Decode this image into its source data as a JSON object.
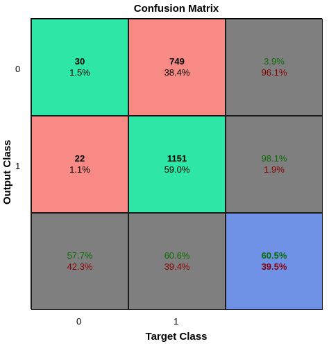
{
  "chart_data": {
    "type": "heatmap",
    "title": "Confusion Matrix",
    "xlabel": "Target Class",
    "ylabel": "Output Class",
    "x_ticks": [
      "0",
      "1"
    ],
    "y_ticks": [
      "0",
      "1"
    ],
    "cells": [
      [
        {
          "count": "30",
          "percent": "1.5%",
          "kind": "correct"
        },
        {
          "count": "749",
          "percent": "38.4%",
          "kind": "wrong"
        },
        {
          "good": "3.9%",
          "bad": "96.1%",
          "kind": "summary"
        }
      ],
      [
        {
          "count": "22",
          "percent": "1.1%",
          "kind": "wrong"
        },
        {
          "count": "1151",
          "percent": "59.0%",
          "kind": "correct"
        },
        {
          "good": "98.1%",
          "bad": "1.9%",
          "kind": "summary"
        }
      ],
      [
        {
          "good": "57.7%",
          "bad": "42.3%",
          "kind": "summary"
        },
        {
          "good": "60.6%",
          "bad": "39.4%",
          "kind": "summary"
        },
        {
          "good": "60.5%",
          "bad": "39.5%",
          "kind": "total"
        }
      ]
    ],
    "colors": {
      "correct": "#2ee6a6",
      "wrong": "#f88a86",
      "summary": "#7f7f7f",
      "total": "#6f92e6",
      "good_text": "#0a6d00",
      "bad_text": "#8b0000"
    }
  }
}
